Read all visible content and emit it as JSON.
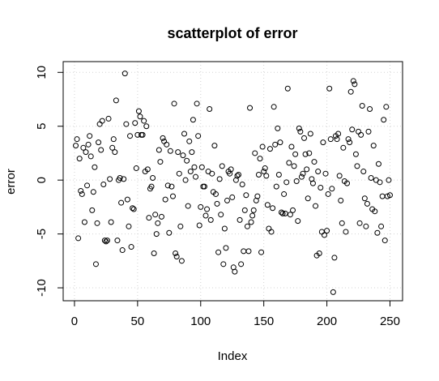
{
  "chart_data": {
    "type": "scatter",
    "title": "scatterplot of error",
    "x_label": "Index",
    "y_label": "error",
    "color": "#000000",
    "grid": true,
    "xlim": [
      -8.96,
      259.96
    ],
    "ylim": [
      -11.2,
      11.0
    ],
    "xticks": [
      0,
      50,
      100,
      150,
      200,
      250
    ],
    "yticks": [
      -10,
      -5,
      0,
      5,
      10
    ],
    "x": [
      1,
      2,
      3,
      4,
      5,
      6,
      7,
      8,
      9,
      10,
      11,
      12,
      13,
      14,
      15,
      16,
      17,
      18,
      19,
      20,
      21,
      22,
      23,
      24,
      25,
      26,
      27,
      28,
      29,
      30,
      31,
      32,
      33,
      34,
      35,
      36,
      37,
      38,
      39,
      40,
      41,
      42,
      43,
      44,
      45,
      46,
      47,
      48,
      49,
      50,
      51,
      52,
      53,
      54,
      55,
      56,
      57,
      58,
      59,
      60,
      61,
      62,
      63,
      64,
      65,
      66,
      67,
      68,
      69,
      70,
      71,
      72,
      73,
      74,
      75,
      76,
      77,
      78,
      79,
      80,
      81,
      82,
      83,
      84,
      85,
      86,
      87,
      88,
      89,
      90,
      91,
      92,
      93,
      94,
      95,
      96,
      97,
      98,
      99,
      100,
      101,
      102,
      103,
      104,
      105,
      106,
      107,
      108,
      109,
      110,
      111,
      112,
      113,
      114,
      115,
      116,
      117,
      118,
      119,
      120,
      121,
      122,
      123,
      124,
      125,
      126,
      127,
      128,
      129,
      130,
      131,
      132,
      133,
      134,
      135,
      136,
      137,
      138,
      139,
      140,
      141,
      142,
      143,
      144,
      145,
      146,
      147,
      148,
      149,
      150,
      151,
      152,
      153,
      154,
      155,
      156,
      157,
      158,
      159,
      160,
      161,
      162,
      163,
      164,
      165,
      166,
      167,
      168,
      169,
      170,
      171,
      172,
      173,
      174,
      175,
      176,
      177,
      178,
      179,
      180,
      181,
      182,
      183,
      184,
      185,
      186,
      187,
      188,
      189,
      190,
      191,
      192,
      193,
      194,
      195,
      196,
      197,
      198,
      199,
      200,
      201,
      202,
      203,
      204,
      205,
      206,
      207,
      208,
      209,
      210,
      211,
      212,
      213,
      214,
      215,
      216,
      217,
      218,
      219,
      220,
      221,
      222,
      223,
      224,
      225,
      226,
      227,
      228,
      229,
      230,
      231,
      232,
      233,
      234,
      235,
      236,
      237,
      238,
      239,
      240,
      241,
      242,
      243,
      244,
      245,
      246,
      247,
      248,
      249,
      250
    ],
    "values": [
      3.2,
      3.8,
      -5.4,
      2.0,
      -1.0,
      -1.3,
      3.0,
      -3.9,
      2.6,
      -0.5,
      3.3,
      4.1,
      2.2,
      -2.8,
      -1.1,
      1.2,
      -7.8,
      -4.0,
      3.5,
      5.2,
      2.8,
      5.5,
      -0.4,
      -5.6,
      -5.7,
      -5.6,
      5.7,
      0.1,
      -3.9,
      3.0,
      3.8,
      2.6,
      7.4,
      -5.6,
      0.0,
      0.2,
      -2.1,
      -6.5,
      0.1,
      9.9,
      5.2,
      -1.8,
      -4.3,
      4.1,
      -6.2,
      -2.6,
      -2.7,
      5.3,
      1.1,
      4.2,
      6.4,
      5.9,
      4.2,
      4.2,
      5.5,
      0.8,
      5.0,
      1.0,
      -3.5,
      -0.8,
      -0.6,
      0.2,
      -6.8,
      -3.2,
      -5.0,
      -4.0,
      2.8,
      1.7,
      -3.4,
      3.9,
      3.6,
      -1.8,
      3.3,
      -0.5,
      -4.9,
      2.7,
      -0.6,
      -1.5,
      7.1,
      -6.8,
      -7.1,
      2.6,
      0.6,
      -4.3,
      -7.5,
      2.3,
      4.3,
      0.0,
      1.8,
      -2.4,
      3.6,
      0.8,
      2.6,
      5.6,
      1.2,
      0.3,
      7.1,
      4.1,
      -4.2,
      -2.5,
      1.2,
      -0.6,
      -0.6,
      -3.3,
      -2.7,
      0.8,
      6.6,
      -3.7,
      0.6,
      -1.1,
      3.2,
      -1.3,
      -2.2,
      -6.7,
      0.1,
      -3.2,
      1.3,
      -7.8,
      -4.5,
      -6.3,
      -1.9,
      0.8,
      0.6,
      1.0,
      -1.6,
      -8.1,
      -8.5,
      0.0,
      0.4,
      0.5,
      -3.7,
      -7.8,
      -0.4,
      -6.6,
      -2.8,
      -1.4,
      -4.3,
      -6.6,
      6.7,
      -3.9,
      -3.3,
      -2.8,
      2.5,
      -1.9,
      -1.5,
      0.5,
      2.0,
      -6.7,
      3.1,
      0.8,
      1.1,
      0.4,
      -2.3,
      -4.5,
      2.9,
      -4.8,
      -2.6,
      6.8,
      3.3,
      -0.6,
      4.8,
      0.5,
      3.5,
      -3.0,
      -3.1,
      -1.3,
      -3.1,
      -0.2,
      8.5,
      1.6,
      -3.2,
      3.1,
      -2.8,
      1.3,
      2.4,
      -0.1,
      -3.8,
      4.8,
      4.5,
      0.3,
      0.6,
      3.9,
      2.4,
      1.0,
      -1.7,
      2.5,
      4.3,
      0.1,
      -0.3,
      1.7,
      -2.4,
      -7.0,
      0.8,
      -6.8,
      -0.7,
      -4.8,
      3.5,
      -5.1,
      0.6,
      -4.7,
      -1.3,
      8.5,
      3.8,
      -0.8,
      -10.4,
      -7.2,
      4.1,
      3.8,
      4.3,
      0.4,
      -1.9,
      -4.0,
      3.0,
      -0.1,
      -4.8,
      -0.3,
      3.8,
      3.5,
      8.2,
      4.7,
      9.2,
      8.9,
      2.4,
      1.3,
      4.5,
      -4.0,
      4.2,
      6.9,
      0.8,
      -1.7,
      -4.3,
      -2.2,
      4.5,
      6.6,
      0.2,
      -2.7,
      3.2,
      -2.9,
      0.0,
      -4.9,
      1.5,
      -0.2,
      -4.3,
      -1.5,
      5.6,
      -5.6,
      6.8,
      -1.5,
      0.0,
      -1.4
    ]
  }
}
